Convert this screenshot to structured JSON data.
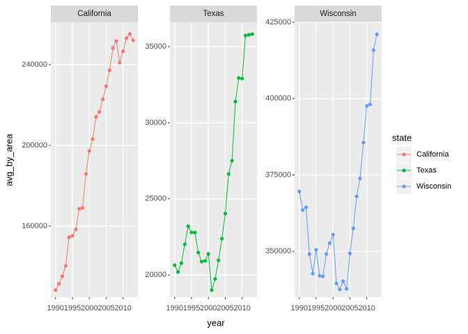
{
  "chart_data": [
    {
      "type": "line",
      "title": "California",
      "x": [
        1990,
        1991,
        1992,
        1993,
        1994,
        1995,
        1996,
        1997,
        1998,
        1999,
        2000,
        2001,
        2002,
        2003,
        2004,
        2005,
        2006,
        2007,
        2008,
        2009,
        2010,
        2011,
        2012,
        2013
      ],
      "series": [
        {
          "name": "California",
          "color": "#F8766D",
          "values": [
            128300,
            131400,
            135200,
            140300,
            154500,
            155200,
            158300,
            168600,
            169000,
            185900,
            197200,
            203100,
            214100,
            216600,
            222800,
            229300,
            237200,
            248300,
            251700,
            241000,
            246600,
            253100,
            255200,
            252100
          ]
        }
      ],
      "xlim": [
        1988.6,
        2014.4
      ],
      "xticks": [
        1990,
        1995,
        2000,
        2005,
        2010
      ],
      "ylim": [
        124800,
        261000
      ],
      "yticks": [
        160000,
        200000,
        240000
      ],
      "grid": true
    },
    {
      "type": "line",
      "title": "Texas",
      "x": [
        1990,
        1991,
        1992,
        1993,
        1994,
        1995,
        1996,
        1997,
        1998,
        1999,
        2000,
        2001,
        2002,
        2003,
        2004,
        2005,
        2006,
        2007,
        2008,
        2009,
        2010,
        2011,
        2012,
        2013
      ],
      "series": [
        {
          "name": "Texas",
          "color": "#00BA38",
          "values": [
            20640,
            20190,
            20780,
            22010,
            23200,
            22790,
            22790,
            21470,
            20870,
            20920,
            21380,
            19000,
            19730,
            20960,
            22380,
            24030,
            26630,
            27500,
            31390,
            32940,
            32900,
            35730,
            35780,
            35820
          ]
        }
      ],
      "xlim": [
        1988.6,
        2014.4
      ],
      "xticks": [
        1990,
        1995,
        2000,
        2005,
        2010
      ],
      "ylim": [
        18540,
        36600
      ],
      "yticks": [
        20000,
        25000,
        30000,
        35000
      ],
      "grid": true
    },
    {
      "type": "line",
      "title": "Wisconsin",
      "x": [
        1990,
        1991,
        1992,
        1993,
        1994,
        1995,
        1996,
        1997,
        1998,
        1999,
        2000,
        2001,
        2002,
        2003,
        2004,
        2005,
        2006,
        2007,
        2008,
        2009,
        2010,
        2011,
        2012,
        2013
      ],
      "series": [
        {
          "name": "Wisconsin",
          "color": "#619CFF",
          "values": [
            369600,
            363500,
            364400,
            349100,
            342700,
            350500,
            342000,
            341800,
            349100,
            352700,
            355500,
            339500,
            337500,
            340200,
            337700,
            349300,
            357500,
            368000,
            373900,
            385600,
            397600,
            398100,
            415900,
            421100
          ]
        }
      ],
      "xlim": [
        1988.6,
        2014.4
      ],
      "xticks": [
        1990,
        1995,
        2000,
        2005,
        2010
      ],
      "ylim": [
        335000,
        425000
      ],
      "yticks": [
        350000,
        375000,
        400000,
        425000
      ],
      "grid": true
    }
  ],
  "x_label": "year",
  "y_label": "avg_by_area",
  "legend_title": "state"
}
